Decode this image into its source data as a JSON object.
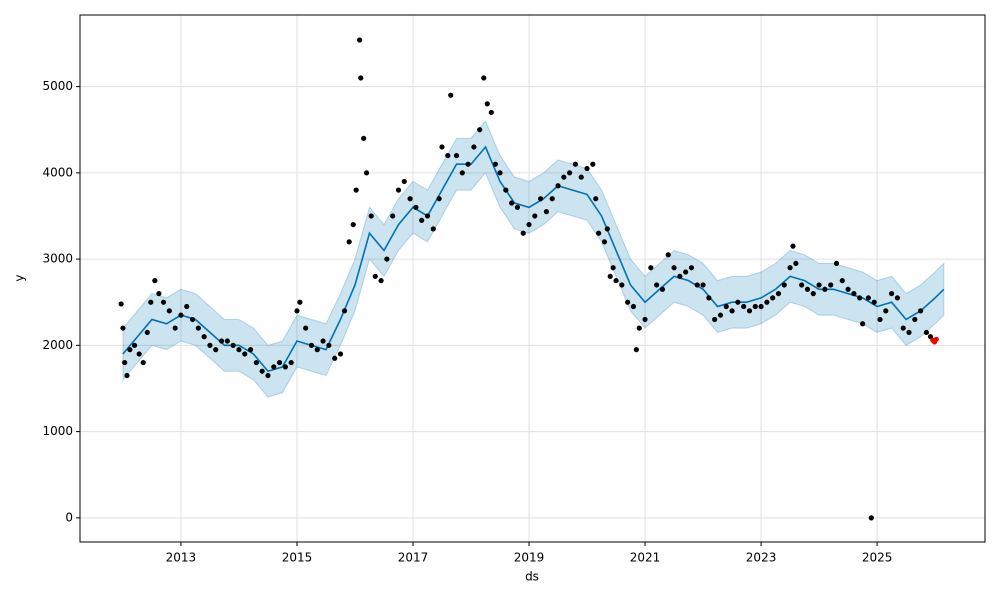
{
  "chart_data": {
    "type": "scatter",
    "xlabel": "ds",
    "ylabel": "y",
    "xlim": [
      2011.26,
      2026.86
    ],
    "ylim": [
      -280,
      5830
    ],
    "xticks": [
      2013,
      2015,
      2017,
      2019,
      2021,
      2023,
      2025
    ],
    "yticks": [
      0,
      1000,
      2000,
      3000,
      4000,
      5000
    ],
    "grid": true,
    "series": [
      {
        "type": "band",
        "color": "#0072b2",
        "x": [
          2012.0,
          2012.25,
          2012.5,
          2012.75,
          2013.0,
          2013.25,
          2013.5,
          2013.75,
          2014.0,
          2014.25,
          2014.5,
          2014.75,
          2015.0,
          2015.25,
          2015.5,
          2015.75,
          2016.0,
          2016.25,
          2016.5,
          2016.75,
          2017.0,
          2017.25,
          2017.5,
          2017.75,
          2018.0,
          2018.25,
          2018.5,
          2018.75,
          2019.0,
          2019.25,
          2019.5,
          2019.75,
          2020.0,
          2020.25,
          2020.5,
          2020.75,
          2021.0,
          2021.25,
          2021.5,
          2021.75,
          2022.0,
          2022.25,
          2022.5,
          2022.75,
          2023.0,
          2023.25,
          2023.5,
          2023.75,
          2024.0,
          2024.25,
          2024.5,
          2024.75,
          2025.0,
          2025.25,
          2025.5,
          2025.75,
          2026.0,
          2026.15
        ],
        "values": [
          1900,
          2100,
          2300,
          2250,
          2350,
          2300,
          2150,
          2000,
          2000,
          1900,
          1700,
          1750,
          2050,
          2000,
          1950,
          2300,
          2700,
          3300,
          3100,
          3400,
          3600,
          3500,
          3800,
          4100,
          4100,
          4300,
          3900,
          3650,
          3600,
          3700,
          3850,
          3800,
          3750,
          3500,
          3100,
          2700,
          2500,
          2650,
          2800,
          2750,
          2650,
          2450,
          2500,
          2500,
          2550,
          2650,
          2800,
          2750,
          2650,
          2650,
          2600,
          2550,
          2450,
          2500,
          2300,
          2400,
          2550,
          2650
        ],
        "lower": [
          1600,
          1800,
          2000,
          1950,
          2050,
          2000,
          1850,
          1700,
          1700,
          1600,
          1400,
          1450,
          1750,
          1700,
          1650,
          2000,
          2400,
          3000,
          2800,
          3100,
          3300,
          3200,
          3500,
          3800,
          3800,
          4000,
          3600,
          3350,
          3300,
          3400,
          3550,
          3500,
          3450,
          3200,
          2800,
          2400,
          2200,
          2350,
          2500,
          2450,
          2350,
          2150,
          2200,
          2200,
          2250,
          2350,
          2500,
          2450,
          2350,
          2350,
          2300,
          2250,
          2150,
          2200,
          2000,
          2100,
          2250,
          2350
        ],
        "upper": [
          2200,
          2400,
          2600,
          2550,
          2650,
          2600,
          2450,
          2300,
          2300,
          2200,
          2000,
          2050,
          2350,
          2300,
          2250,
          2600,
          3000,
          3600,
          3400,
          3700,
          3900,
          3800,
          4100,
          4400,
          4400,
          4600,
          4200,
          3950,
          3900,
          4000,
          4150,
          4100,
          4050,
          3800,
          3400,
          3000,
          2800,
          2950,
          3100,
          3050,
          2950,
          2750,
          2800,
          2800,
          2850,
          2950,
          3100,
          3050,
          2950,
          2950,
          2900,
          2850,
          2750,
          2800,
          2600,
          2700,
          2850,
          2950
        ]
      },
      {
        "type": "scatter",
        "color": "#000000",
        "x": [
          2011.97,
          2012.0,
          2012.03,
          2012.07,
          2012.12,
          2012.2,
          2012.28,
          2012.35,
          2012.42,
          2012.48,
          2012.55,
          2012.62,
          2012.7,
          2012.8,
          2012.9,
          2013.0,
          2013.1,
          2013.2,
          2013.3,
          2013.4,
          2013.5,
          2013.6,
          2013.7,
          2013.8,
          2013.9,
          2014.0,
          2014.1,
          2014.2,
          2014.3,
          2014.4,
          2014.5,
          2014.6,
          2014.7,
          2014.8,
          2014.9,
          2015.0,
          2015.05,
          2015.15,
          2015.25,
          2015.35,
          2015.45,
          2015.55,
          2015.65,
          2015.75,
          2015.82,
          2015.9,
          2015.97,
          2016.02,
          2016.08,
          2016.1,
          2016.15,
          2016.2,
          2016.28,
          2016.35,
          2016.45,
          2016.55,
          2016.65,
          2016.75,
          2016.85,
          2016.95,
          2017.05,
          2017.15,
          2017.25,
          2017.35,
          2017.45,
          2017.5,
          2017.6,
          2017.65,
          2017.75,
          2017.85,
          2017.95,
          2018.05,
          2018.15,
          2018.22,
          2018.28,
          2018.35,
          2018.42,
          2018.5,
          2018.6,
          2018.7,
          2018.8,
          2018.9,
          2019.0,
          2019.1,
          2019.2,
          2019.3,
          2019.4,
          2019.5,
          2019.6,
          2019.7,
          2019.8,
          2019.9,
          2020.0,
          2020.1,
          2020.15,
          2020.2,
          2020.3,
          2020.35,
          2020.4,
          2020.45,
          2020.5,
          2020.6,
          2020.7,
          2020.8,
          2020.85,
          2020.9,
          2021.0,
          2021.1,
          2021.2,
          2021.3,
          2021.4,
          2021.5,
          2021.6,
          2021.7,
          2021.8,
          2021.9,
          2022.0,
          2022.1,
          2022.2,
          2022.3,
          2022.4,
          2022.5,
          2022.6,
          2022.7,
          2022.8,
          2022.9,
          2023.0,
          2023.1,
          2023.2,
          2023.3,
          2023.4,
          2023.5,
          2023.55,
          2023.6,
          2023.7,
          2023.8,
          2023.9,
          2024.0,
          2024.1,
          2024.2,
          2024.3,
          2024.4,
          2024.5,
          2024.6,
          2024.7,
          2024.75,
          2024.85,
          2024.9,
          2024.95,
          2025.05,
          2025.15,
          2025.25,
          2025.35,
          2025.45,
          2025.55,
          2025.65,
          2025.75,
          2025.85,
          2025.92
        ],
        "values": [
          2480,
          2200,
          1800,
          1650,
          1950,
          2000,
          1900,
          1800,
          2150,
          2500,
          2750,
          2600,
          2500,
          2400,
          2200,
          2350,
          2450,
          2300,
          2200,
          2100,
          2000,
          1950,
          2050,
          2050,
          2000,
          1950,
          1900,
          1950,
          1800,
          1700,
          1650,
          1750,
          1800,
          1750,
          1800,
          2400,
          2500,
          2200,
          2000,
          1950,
          2050,
          2000,
          1850,
          1900,
          2400,
          3200,
          3400,
          3800,
          5540,
          5100,
          4400,
          4000,
          3500,
          2800,
          2750,
          3000,
          3500,
          3800,
          3900,
          3700,
          3600,
          3450,
          3500,
          3350,
          3700,
          4300,
          4200,
          4900,
          4200,
          4000,
          4100,
          4300,
          4500,
          5100,
          4800,
          4700,
          4100,
          4000,
          3800,
          3650,
          3600,
          3300,
          3400,
          3500,
          3700,
          3550,
          3700,
          3850,
          3950,
          4000,
          4100,
          3950,
          4050,
          4100,
          3700,
          3300,
          3200,
          3350,
          2800,
          2900,
          2750,
          2700,
          2500,
          2450,
          1950,
          2200,
          2300,
          2900,
          2700,
          2650,
          3050,
          2900,
          2800,
          2850,
          2900,
          2700,
          2700,
          2550,
          2300,
          2350,
          2450,
          2400,
          2500,
          2450,
          2400,
          2450,
          2450,
          2500,
          2550,
          2600,
          2700,
          2900,
          3150,
          2950,
          2700,
          2650,
          2600,
          2700,
          2650,
          2700,
          2950,
          2750,
          2650,
          2600,
          2550,
          2250,
          2550,
          0,
          2500,
          2300,
          2400,
          2600,
          2550,
          2200,
          2150,
          2300,
          2400,
          2150,
          2100
        ]
      },
      {
        "type": "scatter",
        "color": "#ff0000",
        "x": [
          2025.96,
          2025.99,
          2026.02
        ],
        "values": [
          2060,
          2040,
          2070
        ]
      }
    ]
  }
}
